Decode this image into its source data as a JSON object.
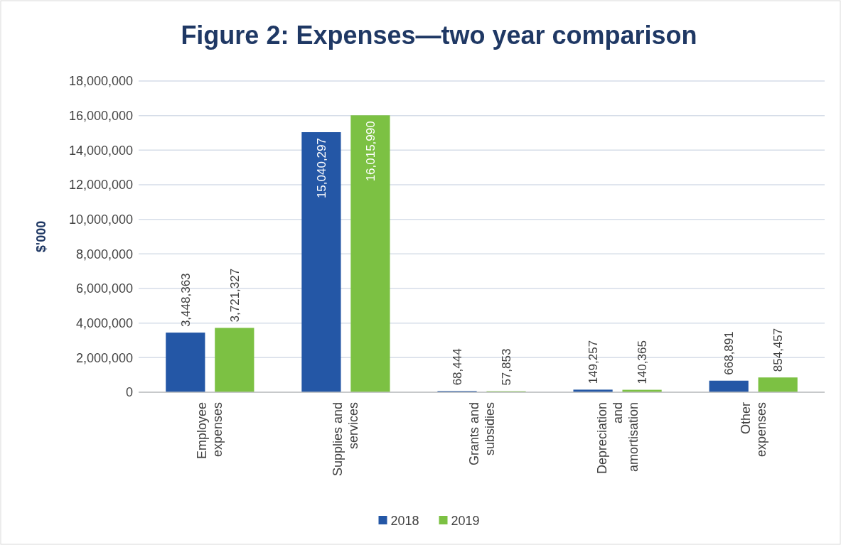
{
  "chart_data": {
    "type": "bar",
    "title": "Figure 2: Expenses—two year comparison",
    "ylabel": "$'000",
    "categories": [
      "Employee expenses",
      "Supplies and services",
      "Grants and subsidies",
      "Depreciation and amortisation",
      "Other expenses"
    ],
    "series": [
      {
        "name": "2018",
        "color": "#2457a6",
        "values": [
          3448363,
          15040297,
          68444,
          149257,
          668891
        ],
        "value_labels": [
          "3,448,363",
          "15,040,297",
          "68,444",
          "149,257",
          "668,891"
        ]
      },
      {
        "name": "2019",
        "color": "#7cc143",
        "values": [
          3721327,
          16015990,
          57853,
          140365,
          854457
        ],
        "value_labels": [
          "3,721,327",
          "16,015,990",
          "57,853",
          "140,365",
          "854,457"
        ]
      }
    ],
    "ylim": [
      0,
      18000000
    ],
    "yticks": [
      {
        "value": 0,
        "label": "0"
      },
      {
        "value": 2000000,
        "label": "2,000,000"
      },
      {
        "value": 4000000,
        "label": "4,000,000"
      },
      {
        "value": 6000000,
        "label": "6,000,000"
      },
      {
        "value": 8000000,
        "label": "8,000,000"
      },
      {
        "value": 10000000,
        "label": "10,000,000"
      },
      {
        "value": 12000000,
        "label": "12,000,000"
      },
      {
        "value": 14000000,
        "label": "14,000,000"
      },
      {
        "value": 16000000,
        "label": "16,000,000"
      },
      {
        "value": 18000000,
        "label": "18,000,000"
      }
    ],
    "grid": "y",
    "legend": "bottom"
  }
}
